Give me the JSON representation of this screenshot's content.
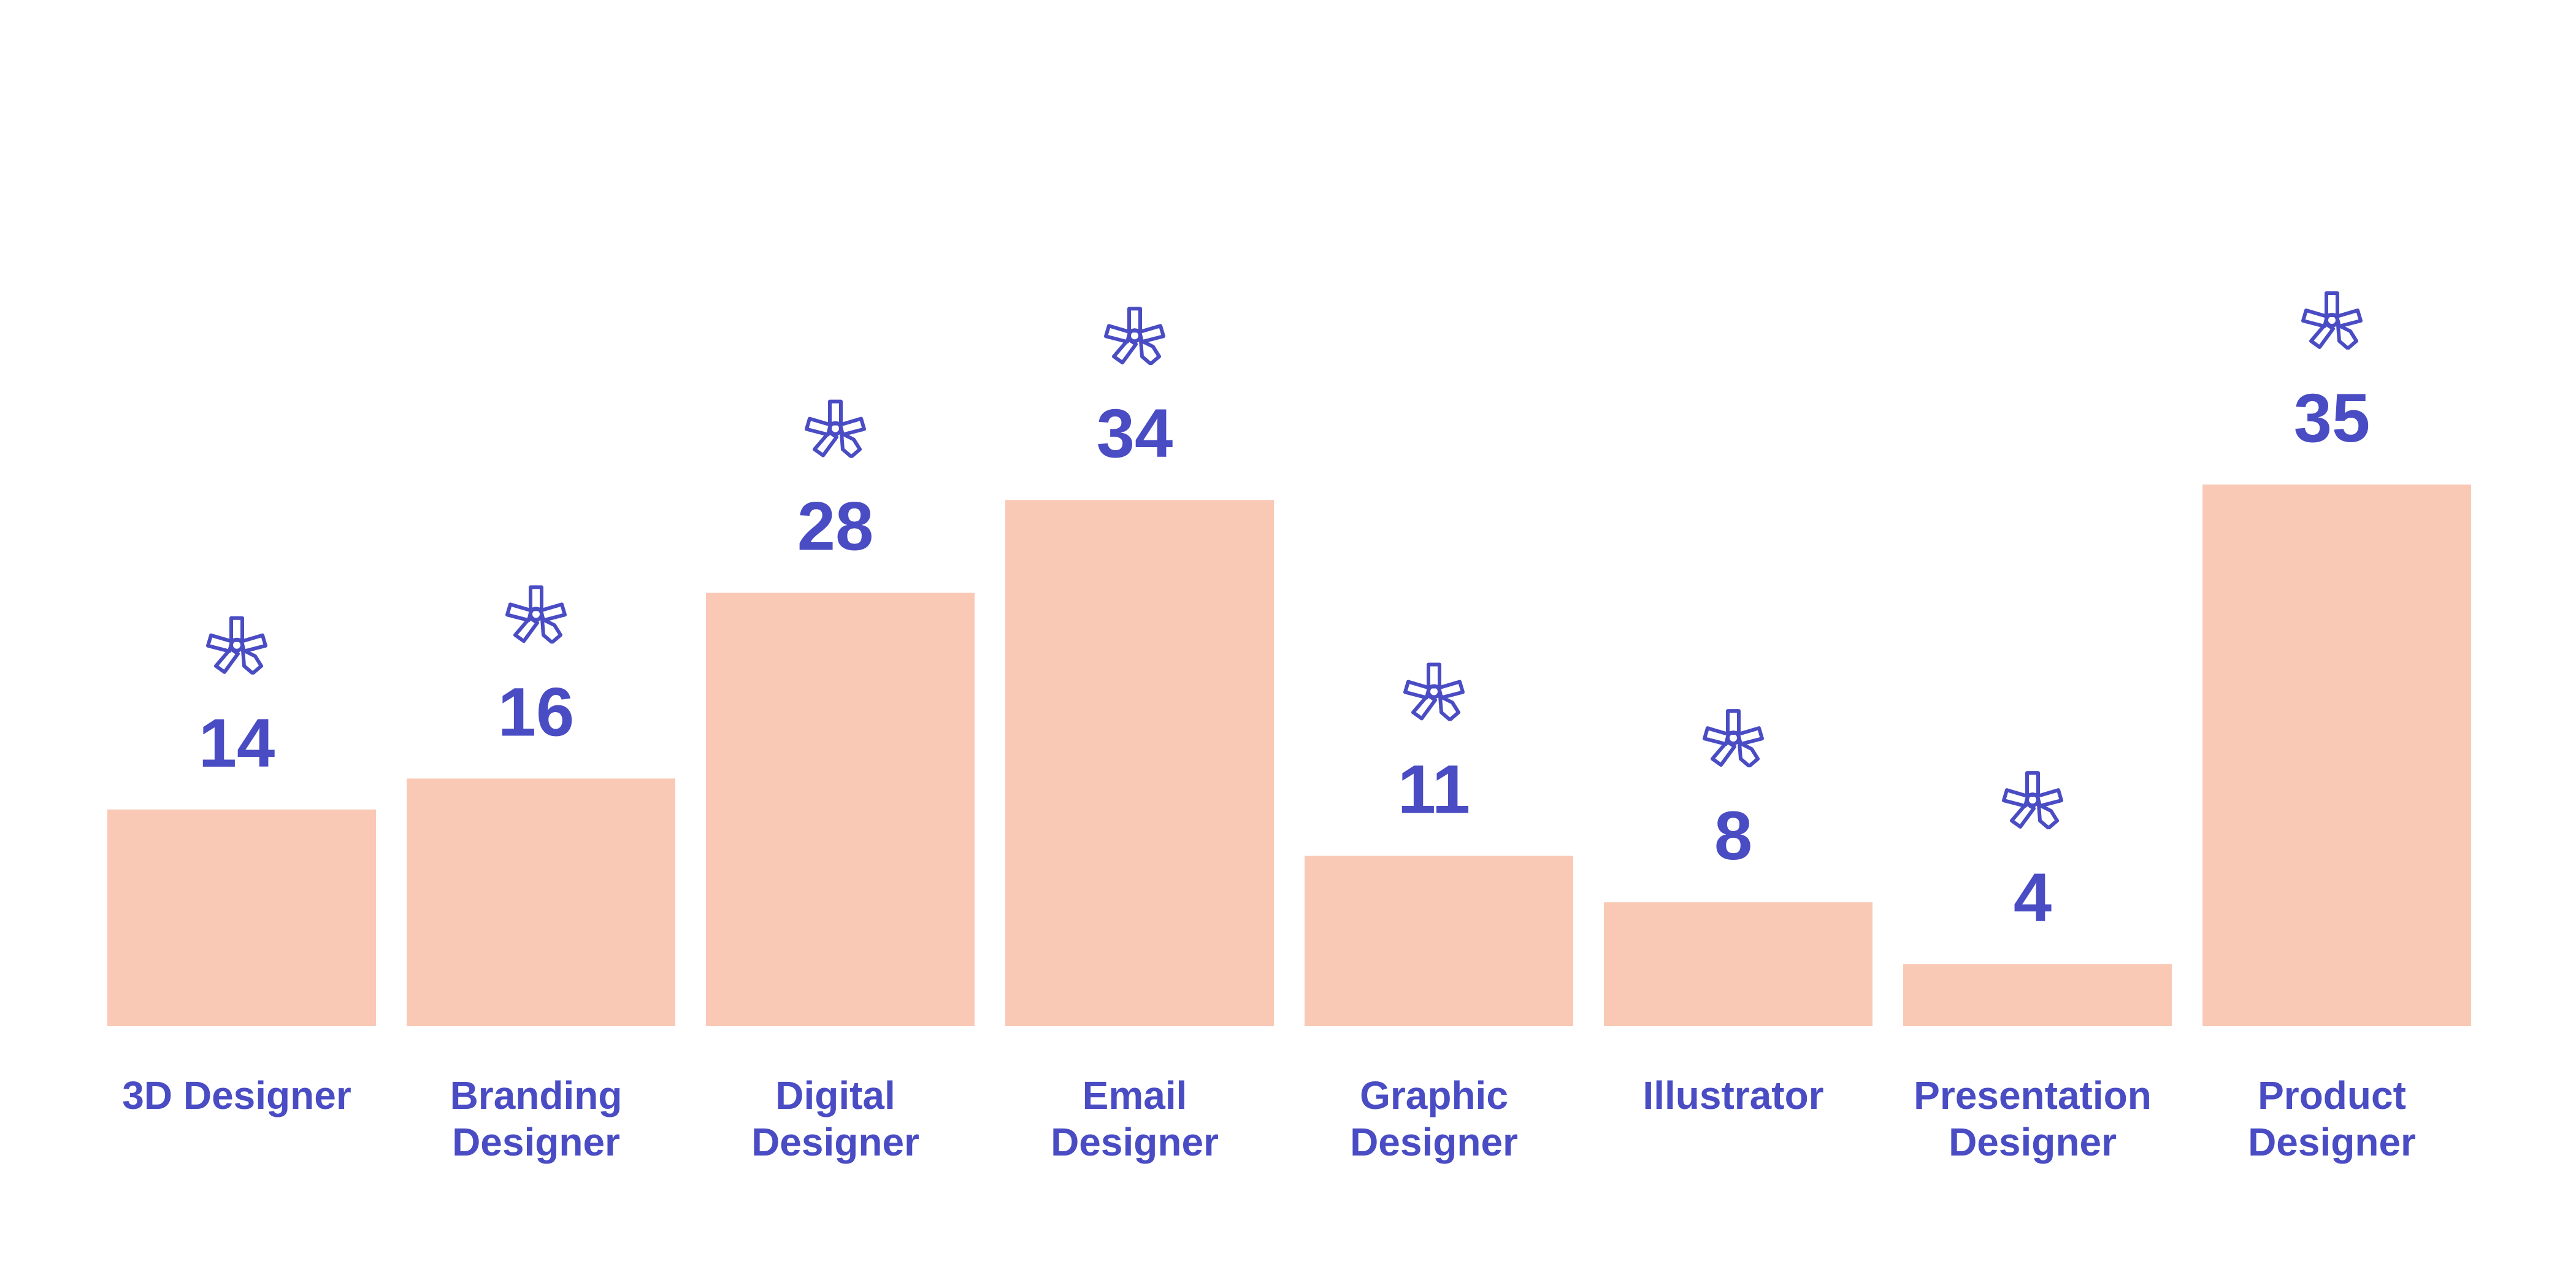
{
  "colors": {
    "bar": "#f9c9b6",
    "text": "#4a4cc4",
    "icon": "#4a4cc4",
    "background": "#ffffff"
  },
  "icon_name": "asterisk-tag-icon",
  "chart_data": {
    "type": "bar",
    "categories": [
      [
        "3D Designer"
      ],
      [
        "Branding",
        "Designer"
      ],
      [
        "Digital",
        "Designer"
      ],
      [
        "Email",
        "Designer"
      ],
      [
        "Graphic",
        "Designer"
      ],
      [
        "Illustrator"
      ],
      [
        "Presentation",
        "Designer"
      ],
      [
        "Product",
        "Designer"
      ]
    ],
    "values": [
      14,
      16,
      28,
      34,
      11,
      8,
      4,
      35
    ],
    "title": "",
    "xlabel": "",
    "ylabel": "",
    "ylim": [
      0,
      35
    ],
    "grid": false,
    "legend": "none"
  }
}
